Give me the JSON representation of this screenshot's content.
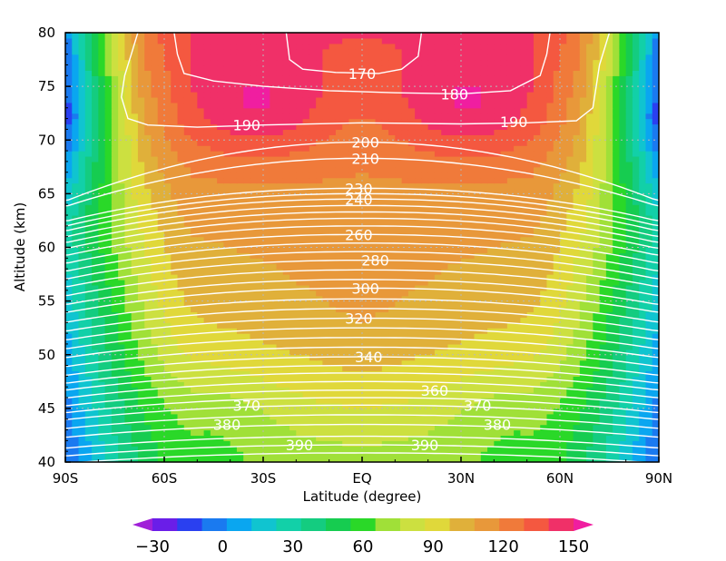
{
  "chart_data": {
    "type": "heatmap",
    "title": "",
    "xlabel": "Latitude (degree)",
    "ylabel": "Altitude (km)",
    "xlim": [
      -90,
      90
    ],
    "ylim": [
      40,
      80
    ],
    "grid": true,
    "x_ticks": [
      {
        "value": -90,
        "label": "90S"
      },
      {
        "value": -60,
        "label": "60S"
      },
      {
        "value": -30,
        "label": "30S"
      },
      {
        "value": 0,
        "label": "EQ"
      },
      {
        "value": 30,
        "label": "30N"
      },
      {
        "value": 60,
        "label": "60N"
      },
      {
        "value": 90,
        "label": "90N"
      }
    ],
    "y_ticks": [
      {
        "value": 40,
        "label": "40"
      },
      {
        "value": 45,
        "label": "45"
      },
      {
        "value": 50,
        "label": "50"
      },
      {
        "value": 55,
        "label": "55"
      },
      {
        "value": 60,
        "label": "60"
      },
      {
        "value": 65,
        "label": "65"
      },
      {
        "value": 70,
        "label": "70"
      },
      {
        "value": 75,
        "label": "75"
      },
      {
        "value": 80,
        "label": "80"
      }
    ],
    "colorbar": {
      "min": -40,
      "max": 160,
      "step": 10,
      "colors": [
        "#a020d8",
        "#6a1ee8",
        "#2a40f0",
        "#1a7af0",
        "#0aa6f0",
        "#10c4d0",
        "#12d0a8",
        "#14cc80",
        "#16cc50",
        "#2ad828",
        "#a0e038",
        "#cce040",
        "#e0d83a",
        "#e0b03a",
        "#e8983a",
        "#f07a3a",
        "#f45840",
        "#f03068",
        "#f01ea0"
      ],
      "tick_values": [
        -30,
        0,
        30,
        60,
        90,
        120,
        150
      ],
      "tick_labels": [
        "−30",
        "0",
        "30",
        "60",
        "90",
        "120",
        "150"
      ]
    },
    "shading_model": "approximate zonal-mean field; color value per (latitude, altitude)",
    "contour_labels": [
      {
        "label": "170",
        "x": 0,
        "y": 76.2
      },
      {
        "label": "180",
        "x": 28,
        "y": 74.3
      },
      {
        "label": "190",
        "x": -35,
        "y": 71.4
      },
      {
        "label": "190",
        "x": 46,
        "y": 71.7
      },
      {
        "label": "200",
        "x": 1,
        "y": 69.8
      },
      {
        "label": "210",
        "x": 1,
        "y": 68.3
      },
      {
        "label": "230",
        "x": -1,
        "y": 65.5
      },
      {
        "label": "240",
        "x": -1,
        "y": 64.5
      },
      {
        "label": "260",
        "x": -1,
        "y": 61.2
      },
      {
        "label": "280",
        "x": 4,
        "y": 58.8
      },
      {
        "label": "300",
        "x": 1,
        "y": 56.2
      },
      {
        "label": "320",
        "x": -1,
        "y": 53.4
      },
      {
        "label": "340",
        "x": 2,
        "y": 49.8
      },
      {
        "label": "360",
        "x": 22,
        "y": 46.7
      },
      {
        "label": "370",
        "x": -35,
        "y": 45.3
      },
      {
        "label": "370",
        "x": 35,
        "y": 45.3
      },
      {
        "label": "380",
        "x": -41,
        "y": 43.5
      },
      {
        "label": "380",
        "x": 41,
        "y": 43.5
      },
      {
        "label": "390",
        "x": -19,
        "y": 41.6
      },
      {
        "label": "390",
        "x": 19,
        "y": 41.6
      }
    ]
  }
}
